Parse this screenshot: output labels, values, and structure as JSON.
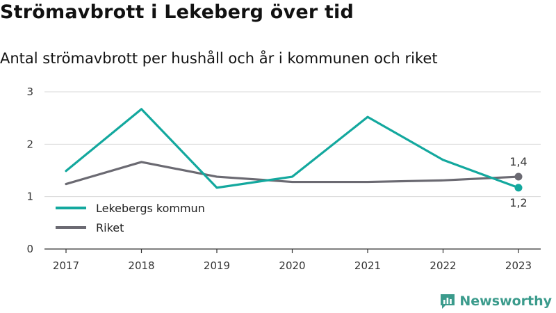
{
  "title": "Strömavbrott i Lekeberg över tid",
  "subtitle": "Antal strömavbrott per hushåll och år i kommunen och riket",
  "brand": {
    "name": "Newsworthy",
    "color": "#3b9b8c"
  },
  "chart_data": {
    "type": "line",
    "x": [
      "2017",
      "2018",
      "2019",
      "2020",
      "2021",
      "2022",
      "2023"
    ],
    "ylim": [
      0,
      3
    ],
    "yticks": [
      "0",
      "1",
      "2",
      "3"
    ],
    "grid": true,
    "legend_position": "bottom-left",
    "series": [
      {
        "name": "Lekebergs kommun",
        "color": "#13a89e",
        "values": [
          1.49,
          2.67,
          1.17,
          1.38,
          2.52,
          1.7,
          1.17
        ],
        "end_label": "1,2"
      },
      {
        "name": "Riket",
        "color": "#6b6a72",
        "values": [
          1.24,
          1.66,
          1.38,
          1.28,
          1.28,
          1.31,
          1.38
        ],
        "end_label": "1,4"
      }
    ]
  }
}
